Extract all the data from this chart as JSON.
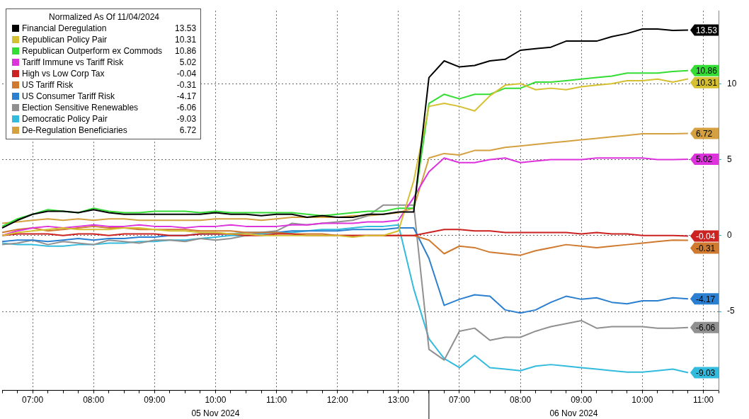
{
  "chart_data": {
    "type": "line",
    "legend_title": "Normalized As Of 11/04/2024",
    "legend": "top left",
    "grid": true,
    "line_style": "solid",
    "marker": "none",
    "categories": [
      null,
      null,
      "07:00",
      null,
      null,
      null,
      "08:00",
      null,
      null,
      null,
      "09:00",
      null,
      null,
      null,
      "10:00",
      null,
      null,
      null,
      "11:00",
      null,
      null,
      null,
      "12:00",
      null,
      null,
      null,
      "13:00",
      null,
      null,
      null,
      "07:00",
      null,
      null,
      null,
      "08:00",
      null,
      null,
      null,
      "09:00",
      null,
      null,
      null,
      "10:00",
      null,
      null,
      null,
      "11:00",
      null
    ],
    "ylim": [
      -10.2,
      14.8
    ],
    "yticks": [
      -5,
      0,
      5,
      10
    ],
    "annotations": [
      "05 Nov 2024",
      "06 Nov 2024"
    ],
    "series": [
      {
        "name": "Financial Deregulation",
        "color": "#000000",
        "values": [
          0.5,
          1.0,
          1.4,
          1.6,
          1.6,
          1.5,
          1.7,
          1.5,
          1.4,
          1.4,
          1.4,
          1.4,
          1.4,
          1.4,
          1.5,
          1.4,
          1.4,
          1.3,
          1.4,
          1.4,
          1.2,
          1.3,
          1.2,
          1.2,
          1.4,
          1.4,
          1.55,
          1.55,
          10.4,
          11.5,
          11.1,
          11.2,
          11.5,
          11.6,
          12.2,
          12.3,
          12.4,
          12.8,
          12.8,
          12.8,
          13.1,
          13.3,
          13.6,
          13.6,
          13.5,
          13.53,
          null,
          null
        ],
        "value_labels": [
          null,
          null,
          null,
          null,
          null,
          null,
          null,
          null,
          null,
          null,
          null,
          null,
          null,
          null,
          null,
          null,
          null,
          null,
          null,
          null,
          null,
          null,
          null,
          null,
          null,
          null,
          null,
          null,
          null,
          null,
          null,
          null,
          null,
          null,
          null,
          null,
          null,
          null,
          null,
          null,
          null,
          null,
          null,
          null,
          null,
          "13.53",
          null,
          null
        ]
      },
      {
        "name": "Republican Policy Pair",
        "color": "#d4c030",
        "values": [
          0.0,
          0.2,
          0.3,
          0.4,
          0.5,
          0.4,
          0.4,
          0.4,
          0.5,
          0.5,
          0.4,
          0.3,
          0.3,
          0.2,
          0.2,
          0.1,
          0.1,
          0.0,
          0.0,
          0.0,
          0.0,
          0.0,
          0.0,
          -0.1,
          0.0,
          0.0,
          0.3,
          3.6,
          8.5,
          8.7,
          8.5,
          8.2,
          9.2,
          9.9,
          10.0,
          9.6,
          9.7,
          9.6,
          9.8,
          9.9,
          10.0,
          10.2,
          10.2,
          10.3,
          10.1,
          10.31,
          null,
          null
        ],
        "value_labels": [
          null,
          null,
          null,
          null,
          null,
          null,
          null,
          null,
          null,
          null,
          null,
          null,
          null,
          null,
          null,
          null,
          null,
          null,
          null,
          null,
          null,
          null,
          null,
          null,
          null,
          null,
          null,
          null,
          null,
          null,
          null,
          null,
          null,
          null,
          null,
          null,
          null,
          null,
          null,
          null,
          null,
          null,
          null,
          null,
          null,
          "10.31",
          null,
          null
        ]
      },
      {
        "name": "Republican Outperform ex Commods",
        "color": "#33dd33",
        "values": [
          0.6,
          1.1,
          1.4,
          1.7,
          1.6,
          1.5,
          1.8,
          1.6,
          1.5,
          1.5,
          1.6,
          1.6,
          1.6,
          1.5,
          1.6,
          1.5,
          1.5,
          1.5,
          1.5,
          1.5,
          1.4,
          1.3,
          1.4,
          1.5,
          1.6,
          1.6,
          1.8,
          1.8,
          8.7,
          9.3,
          9.0,
          9.3,
          9.3,
          9.7,
          9.7,
          10.1,
          10.1,
          10.2,
          10.3,
          10.4,
          10.5,
          10.7,
          10.7,
          10.7,
          10.8,
          10.86,
          null,
          null
        ],
        "value_labels": [
          null,
          null,
          null,
          null,
          null,
          null,
          null,
          null,
          null,
          null,
          null,
          null,
          null,
          null,
          null,
          null,
          null,
          null,
          null,
          null,
          null,
          null,
          null,
          null,
          null,
          null,
          null,
          null,
          null,
          null,
          null,
          null,
          null,
          null,
          null,
          null,
          null,
          null,
          null,
          null,
          null,
          null,
          null,
          null,
          null,
          "10.86",
          null,
          null
        ]
      },
      {
        "name": "Tariff Immune vs Tariff Risk",
        "color": "#dd33dd",
        "values": [
          0.0,
          0.3,
          0.5,
          0.6,
          0.5,
          0.6,
          0.7,
          0.6,
          0.6,
          0.7,
          0.6,
          0.6,
          0.5,
          0.6,
          0.6,
          0.7,
          0.6,
          0.6,
          0.6,
          0.7,
          0.7,
          0.8,
          0.8,
          0.8,
          0.9,
          0.9,
          1.0,
          2.5,
          4.2,
          5.1,
          4.8,
          4.8,
          5.0,
          5.1,
          4.8,
          4.9,
          5.0,
          5.0,
          5.0,
          5.1,
          5.1,
          5.1,
          5.1,
          5.0,
          5.0,
          5.02,
          null,
          null
        ],
        "value_labels": [
          null,
          null,
          null,
          null,
          null,
          null,
          null,
          null,
          null,
          null,
          null,
          null,
          null,
          null,
          null,
          null,
          null,
          null,
          null,
          null,
          null,
          null,
          null,
          null,
          null,
          null,
          null,
          null,
          null,
          null,
          null,
          null,
          null,
          null,
          null,
          null,
          null,
          null,
          null,
          null,
          null,
          null,
          null,
          null,
          null,
          "5.02",
          null,
          null
        ]
      },
      {
        "name": "High vs Low Corp Tax",
        "color": "#cc2222",
        "values": [
          0.0,
          0.1,
          0.1,
          0.1,
          0.0,
          0.1,
          0.1,
          0.0,
          0.1,
          0.1,
          0.1,
          0.0,
          0.0,
          0.1,
          0.1,
          0.1,
          0.0,
          0.0,
          0.1,
          0.1,
          0.0,
          0.0,
          0.0,
          0.0,
          0.0,
          0.0,
          0.0,
          0.0,
          0.2,
          0.4,
          0.4,
          0.3,
          0.3,
          0.2,
          0.2,
          0.2,
          0.2,
          0.2,
          0.1,
          0.2,
          0.1,
          0.1,
          0.0,
          0.0,
          0.0,
          -0.04,
          null,
          null
        ],
        "value_labels": [
          null,
          null,
          null,
          null,
          null,
          null,
          null,
          null,
          null,
          null,
          null,
          null,
          null,
          null,
          null,
          null,
          null,
          null,
          null,
          null,
          null,
          null,
          null,
          null,
          null,
          null,
          null,
          null,
          null,
          null,
          null,
          null,
          null,
          null,
          null,
          null,
          null,
          null,
          null,
          null,
          null,
          null,
          null,
          null,
          null,
          "-0.04",
          null,
          null
        ]
      },
      {
        "name": "US Tariff Risk",
        "color": "#d07a30",
        "values": [
          0.2,
          0.4,
          0.5,
          0.3,
          0.4,
          0.5,
          0.6,
          0.5,
          0.5,
          0.4,
          0.4,
          0.4,
          0.4,
          0.3,
          0.3,
          0.3,
          0.2,
          0.2,
          0.2,
          0.1,
          0.1,
          0.1,
          0.0,
          0.0,
          0.0,
          0.0,
          0.0,
          0.0,
          -0.3,
          -1.2,
          -0.7,
          -0.8,
          -1.1,
          -1.2,
          -1.3,
          -1.0,
          -0.8,
          -0.6,
          -0.7,
          -0.8,
          -0.7,
          -0.6,
          -0.5,
          -0.4,
          -0.3,
          -0.31,
          null,
          null
        ],
        "value_labels": [
          null,
          null,
          null,
          null,
          null,
          null,
          null,
          null,
          null,
          null,
          null,
          null,
          null,
          null,
          null,
          null,
          null,
          null,
          null,
          null,
          null,
          null,
          null,
          null,
          null,
          null,
          null,
          null,
          null,
          null,
          null,
          null,
          null,
          null,
          null,
          null,
          null,
          null,
          null,
          null,
          null,
          null,
          null,
          null,
          null,
          "-0.31",
          null,
          null
        ]
      },
      {
        "name": "US Consumer Tariff Risk",
        "color": "#2a7fd0",
        "values": [
          -0.4,
          -0.3,
          -0.3,
          -0.4,
          -0.3,
          -0.2,
          -0.3,
          -0.2,
          -0.2,
          -0.1,
          -0.1,
          0.0,
          0.0,
          0.1,
          0.1,
          0.1,
          0.2,
          0.2,
          0.2,
          0.3,
          0.3,
          0.3,
          0.3,
          0.4,
          0.4,
          0.4,
          0.5,
          0.5,
          -1.5,
          -4.6,
          -4.2,
          -3.9,
          -4.0,
          -4.9,
          -5.1,
          -4.9,
          -4.4,
          -4.0,
          -4.2,
          -4.1,
          -4.4,
          -4.5,
          -4.3,
          -4.3,
          -4.1,
          -4.17,
          null,
          null
        ],
        "value_labels": [
          null,
          null,
          null,
          null,
          null,
          null,
          null,
          null,
          null,
          null,
          null,
          null,
          null,
          null,
          null,
          null,
          null,
          null,
          null,
          null,
          null,
          null,
          null,
          null,
          null,
          null,
          null,
          null,
          null,
          null,
          null,
          null,
          null,
          null,
          null,
          null,
          null,
          null,
          null,
          null,
          null,
          null,
          null,
          null,
          null,
          "-4.17",
          null,
          null
        ]
      },
      {
        "name": "Election Sensitive Renewables",
        "color": "#909090",
        "values": [
          -0.6,
          -0.5,
          -0.3,
          -0.6,
          -0.4,
          -0.5,
          -0.6,
          -0.3,
          -0.4,
          -0.5,
          -0.3,
          -0.3,
          -0.4,
          -0.2,
          -0.3,
          -0.2,
          0.0,
          0.2,
          0.3,
          0.8,
          0.7,
          0.8,
          0.9,
          1.0,
          1.3,
          2.0,
          2.0,
          2.0,
          -7.5,
          -8.2,
          -6.3,
          -6.1,
          -6.9,
          -6.7,
          -6.7,
          -6.3,
          -6.0,
          -5.8,
          -5.6,
          -6.1,
          -6.0,
          -6.0,
          -6.0,
          -6.1,
          -6.1,
          -6.06,
          null,
          null
        ],
        "value_labels": [
          null,
          null,
          null,
          null,
          null,
          null,
          null,
          null,
          null,
          null,
          null,
          null,
          null,
          null,
          null,
          null,
          null,
          null,
          null,
          null,
          null,
          null,
          null,
          null,
          null,
          null,
          null,
          null,
          null,
          null,
          null,
          null,
          null,
          null,
          null,
          null,
          null,
          null,
          null,
          null,
          null,
          null,
          null,
          null,
          null,
          "-6.06",
          null,
          null
        ]
      },
      {
        "name": "Democratic Policy Pair",
        "color": "#33bbdd",
        "values": [
          -0.5,
          -0.6,
          -0.6,
          -0.7,
          -0.7,
          -0.6,
          -0.6,
          -0.5,
          -0.5,
          -0.4,
          -0.4,
          -0.3,
          -0.3,
          -0.2,
          -0.1,
          0.0,
          0.0,
          0.1,
          0.2,
          0.2,
          0.3,
          0.4,
          0.4,
          0.5,
          0.6,
          0.6,
          0.7,
          -3.5,
          -6.8,
          -8.1,
          -8.7,
          -7.9,
          -8.7,
          -8.8,
          -8.9,
          -8.6,
          -8.5,
          -8.6,
          -8.7,
          -8.8,
          -8.9,
          -9.0,
          -9.0,
          -8.9,
          -8.8,
          -9.03,
          null,
          null
        ],
        "value_labels": [
          null,
          null,
          null,
          null,
          null,
          null,
          null,
          null,
          null,
          null,
          null,
          null,
          null,
          null,
          null,
          null,
          null,
          null,
          null,
          null,
          null,
          null,
          null,
          null,
          null,
          null,
          null,
          null,
          null,
          null,
          null,
          null,
          null,
          null,
          null,
          null,
          null,
          null,
          null,
          null,
          null,
          null,
          null,
          null,
          null,
          "-9.03",
          null,
          null
        ]
      },
      {
        "name": "De-Regulation Beneficiaries",
        "color": "#d4a040",
        "values": [
          0.8,
          0.9,
          1.0,
          1.1,
          1.0,
          1.1,
          1.0,
          1.1,
          1.1,
          1.0,
          1.0,
          1.0,
          1.0,
          1.0,
          1.1,
          1.1,
          1.1,
          1.0,
          1.1,
          1.2,
          1.2,
          1.2,
          1.2,
          1.3,
          1.3,
          1.4,
          1.5,
          1.8,
          5.1,
          5.4,
          5.3,
          5.6,
          5.6,
          5.8,
          5.9,
          6.0,
          6.1,
          6.2,
          6.3,
          6.4,
          6.5,
          6.6,
          6.7,
          6.7,
          6.7,
          6.72,
          null,
          null
        ],
        "value_labels": [
          null,
          null,
          null,
          null,
          null,
          null,
          null,
          null,
          null,
          null,
          null,
          null,
          null,
          null,
          null,
          null,
          null,
          null,
          null,
          null,
          null,
          null,
          null,
          null,
          null,
          null,
          null,
          null,
          null,
          null,
          null,
          null,
          null,
          null,
          null,
          null,
          null,
          null,
          null,
          null,
          null,
          null,
          null,
          null,
          null,
          "6.72",
          null,
          null
        ]
      }
    ]
  }
}
